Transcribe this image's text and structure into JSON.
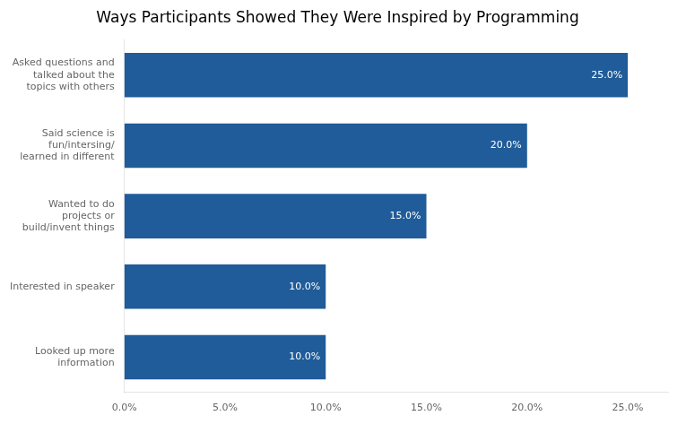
{
  "chart_data": {
    "type": "bar",
    "orientation": "horizontal",
    "title": "Ways Participants Showed They Were Inspired by Programming",
    "categories": [
      "Looked up more\ninformation",
      "Interested in speaker",
      "Wanted to do\nprojects or\nbuild/invent things",
      "Said science is\nfun/intersing/\nlearned in different",
      "Asked questions and\ntalked about the\ntopics with others"
    ],
    "values": [
      10.0,
      10.0,
      15.0,
      20.0,
      25.0
    ],
    "value_labels": [
      "10.0%",
      "10.0%",
      "15.0%",
      "20.0%",
      "25.0%"
    ],
    "data_labels": true,
    "color": "#1F5C99",
    "xlim": [
      0,
      27.0
    ],
    "xticks": [
      {
        "value": 0,
        "label": "0.0%"
      },
      {
        "value": 5.0,
        "label": "5.0%"
      },
      {
        "value": 10.0,
        "label": "10.0%"
      },
      {
        "value": 15.0,
        "label": "15.0%"
      },
      {
        "value": 20.0,
        "label": "20.0%"
      },
      {
        "value": 25.0,
        "label": "25.0%"
      }
    ],
    "grid": false
  }
}
